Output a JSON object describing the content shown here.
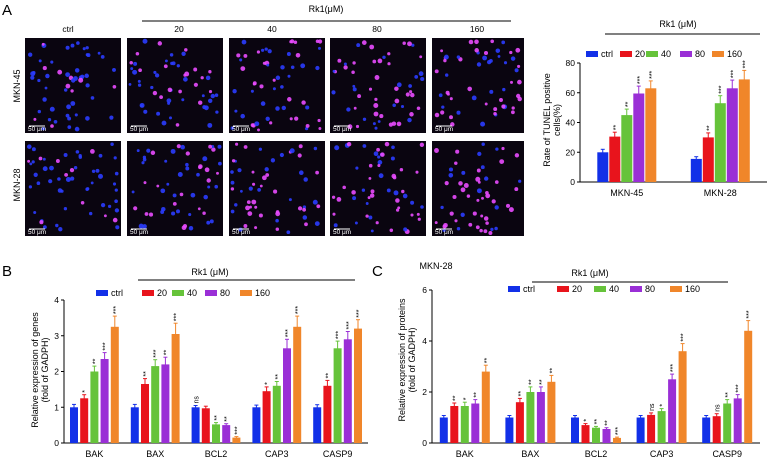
{
  "colors": {
    "ctrl": "#1230e8",
    "c20": "#e8141c",
    "c40": "#66c33a",
    "c80": "#9a2fd6",
    "c160": "#f0862a",
    "dose": "#f0862a",
    "dot_blue": "#2a3cff",
    "dot_pink": "#e94bff",
    "micro_bg": "#0a0510"
  },
  "panel_a": {
    "letter": "A",
    "treatment_label": "Rk1(μM)",
    "columns": [
      "ctrl",
      "20",
      "40",
      "80",
      "160"
    ],
    "rows": [
      "MKN-45",
      "MKN-28"
    ],
    "scale_bar": "50 μm"
  },
  "chart_data": [
    {
      "id": "A-right",
      "type": "bar",
      "title": "",
      "treatment_label": "Rk1 (μM)",
      "legend": [
        "ctrl",
        "20",
        "40",
        "80",
        "160"
      ],
      "categories": [
        "MKN-45",
        "MKN-28"
      ],
      "ylabel": "Rate of TUNEL positive cells(%)",
      "ylabel_lines": [
        "Rate of TUNEL positive",
        "cells(%)"
      ],
      "ylim": [
        0,
        80
      ],
      "yticks": [
        0,
        20,
        40,
        60,
        80
      ],
      "series": [
        {
          "name": "ctrl",
          "values": [
            20,
            15.5
          ],
          "errors": [
            2,
            1.5
          ],
          "sig": [
            "",
            ""
          ]
        },
        {
          "name": "20",
          "values": [
            30.5,
            30
          ],
          "errors": [
            3,
            3
          ],
          "sig": [
            "**",
            "**"
          ]
        },
        {
          "name": "40",
          "values": [
            45,
            53
          ],
          "errors": [
            4,
            5
          ],
          "sig": [
            "**",
            "***"
          ]
        },
        {
          "name": "80",
          "values": [
            59.5,
            63
          ],
          "errors": [
            5,
            5.5
          ],
          "sig": [
            "***",
            "***"
          ]
        },
        {
          "name": "160",
          "values": [
            63,
            69
          ],
          "errors": [
            5,
            6
          ],
          "sig": [
            "***",
            "***"
          ]
        }
      ]
    },
    {
      "id": "B",
      "letter": "B",
      "type": "bar",
      "title": "",
      "treatment_label": "Rk1 (μM)",
      "legend": [
        "ctrl",
        "20",
        "40",
        "80",
        "160"
      ],
      "categories": [
        "BAK",
        "BAX",
        "BCL2",
        "CAP3",
        "CASP9"
      ],
      "ylabel": "Relative expression of genes (fold of GADPH)",
      "ylabel_lines": [
        "Relative expression of genes",
        "(fold of GADPH)"
      ],
      "ylim": [
        0,
        4
      ],
      "yticks": [
        0,
        1,
        2,
        3,
        4
      ],
      "series": [
        {
          "name": "ctrl",
          "values": [
            1.0,
            1.0,
            1.0,
            1.0,
            1.0
          ],
          "errors": [
            0.08,
            0.08,
            0.05,
            0.06,
            0.07
          ],
          "sig": [
            "",
            "",
            "ns",
            "",
            ""
          ]
        },
        {
          "name": "20",
          "values": [
            1.25,
            1.65,
            0.97,
            1.45,
            1.6
          ],
          "errors": [
            0.1,
            0.15,
            0.06,
            0.12,
            0.15
          ],
          "sig": [
            "*",
            "**",
            "",
            "*",
            "**"
          ]
        },
        {
          "name": "40",
          "values": [
            2.0,
            2.15,
            0.52,
            1.6,
            2.65
          ],
          "errors": [
            0.15,
            0.18,
            0.05,
            0.12,
            0.2
          ],
          "sig": [
            "**",
            "***",
            "**",
            "**",
            "***"
          ]
        },
        {
          "name": "80",
          "values": [
            2.35,
            2.2,
            0.5,
            2.65,
            2.9
          ],
          "errors": [
            0.18,
            0.2,
            0.04,
            0.25,
            0.22
          ],
          "sig": [
            "***",
            "**",
            "**",
            "***",
            "***"
          ]
        },
        {
          "name": "160",
          "values": [
            3.25,
            3.05,
            0.15,
            3.25,
            3.2
          ],
          "errors": [
            0.3,
            0.3,
            0.03,
            0.3,
            0.25
          ],
          "sig": [
            "***",
            "***",
            "***",
            "***",
            "***"
          ]
        }
      ]
    },
    {
      "id": "C",
      "letter": "C",
      "type": "bar",
      "title": "MKN-28",
      "treatment_label": "Rk1 (μM)",
      "legend": [
        "ctrl",
        "20",
        "40",
        "80",
        "160"
      ],
      "categories": [
        "BAK",
        "BAX",
        "BCL2",
        "CAP3",
        "CASP9"
      ],
      "ylabel": "Relative expression of proteins (fold of GADPH)",
      "ylabel_lines": [
        "Relative expression of proteins",
        "(fold of GADPH)"
      ],
      "ylim": [
        0,
        6
      ],
      "yticks": [
        0,
        2,
        4,
        6
      ],
      "series": [
        {
          "name": "ctrl",
          "values": [
            1.0,
            1.0,
            1.0,
            1.0,
            1.0
          ],
          "errors": [
            0.08,
            0.08,
            0.08,
            0.08,
            0.08
          ],
          "sig": [
            "",
            "",
            "",
            "",
            ""
          ]
        },
        {
          "name": "20",
          "values": [
            1.45,
            1.6,
            0.7,
            1.1,
            1.05
          ],
          "errors": [
            0.12,
            0.15,
            0.06,
            0.08,
            0.1
          ],
          "sig": [
            "**",
            "**",
            "*",
            "ns",
            "ns"
          ]
        },
        {
          "name": "40",
          "values": [
            1.45,
            2.0,
            0.6,
            1.25,
            1.55
          ],
          "errors": [
            0.15,
            0.2,
            0.05,
            0.1,
            0.15
          ],
          "sig": [
            "*",
            "**",
            "**",
            "*",
            "**"
          ]
        },
        {
          "name": "80",
          "values": [
            1.55,
            2.0,
            0.55,
            2.5,
            1.75
          ],
          "errors": [
            0.15,
            0.2,
            0.05,
            0.2,
            0.15
          ],
          "sig": [
            "**",
            "**",
            "**",
            "***",
            "***"
          ]
        },
        {
          "name": "160",
          "values": [
            2.8,
            2.4,
            0.2,
            3.6,
            4.4
          ],
          "errors": [
            0.25,
            0.25,
            0.03,
            0.3,
            0.4
          ],
          "sig": [
            "**",
            "**",
            "***",
            "***",
            "***"
          ]
        }
      ]
    }
  ]
}
